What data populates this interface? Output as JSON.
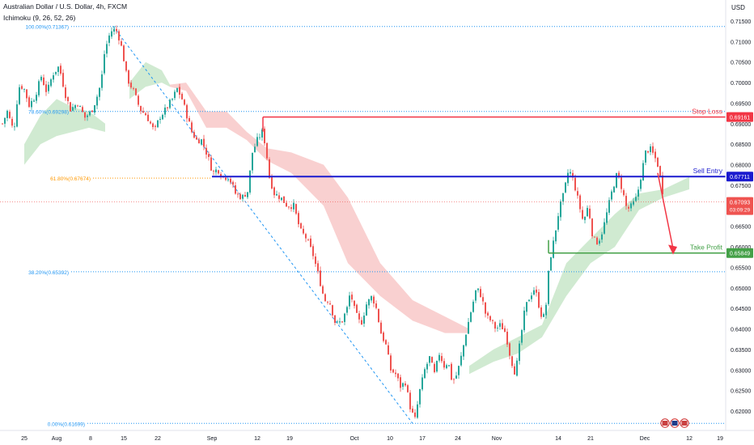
{
  "header": {
    "title": "Australian Dollar / U.S. Dollar, 4h, FXCM",
    "indicator": "Ichimoku (9, 26, 52, 26)"
  },
  "currency": "USD",
  "colors": {
    "up": "#26a69a",
    "down": "#ef5350",
    "cloud_bull": "#c8e6c9",
    "cloud_bear": "#f8c8c8",
    "stop": "#f23645",
    "entry": "#1a1acf",
    "target": "#43a047",
    "fib": "#2196f3",
    "fib_mid": "#ff9800",
    "axis_text": "#131722"
  },
  "chart_data": {
    "type": "candlestick",
    "y_range": [
      0.6165,
      0.7155
    ],
    "y_ticks": [
      "0.71500",
      "0.71000",
      "0.70500",
      "0.70000",
      "0.69500",
      "0.69000",
      "0.68500",
      "0.68000",
      "0.67500",
      "0.67000",
      "0.66500",
      "0.66000",
      "0.65500",
      "0.65000",
      "0.64500",
      "0.64000",
      "0.63500",
      "0.63000",
      "0.62500",
      "0.62000"
    ],
    "x_ticks": [
      "25",
      "Aug",
      "8",
      "15",
      "22",
      "Sep",
      "12",
      "19",
      "Oct",
      "10",
      "17",
      "24",
      "Nov",
      "14",
      "21",
      "Dec",
      "12",
      "19"
    ],
    "fib_levels": [
      {
        "label": "100.00%(0.71367)",
        "value": 0.71367
      },
      {
        "label": "78.60%(0.69298)",
        "value": 0.69298
      },
      {
        "label": "61.80%(0.67674)",
        "value": 0.67674
      },
      {
        "label": "38.20%(0.65392)",
        "value": 0.65392
      },
      {
        "label": "0.00%(0.61699)",
        "value": 0.61699
      }
    ],
    "trade_levels": [
      {
        "name": "Stop Loss",
        "value": 0.69161,
        "price_label": "0.69161"
      },
      {
        "name": "Sell Entry",
        "value": 0.67711,
        "price_label": "0.67711"
      },
      {
        "name": "Take Profit",
        "value": 0.65849,
        "price_label": "0.65849"
      }
    ],
    "current_price": {
      "value": 0.67093,
      "label": "0.67093",
      "countdown": "03:09:29"
    },
    "path": [
      [
        0,
        0.689
      ],
      [
        8,
        0.693
      ],
      [
        16,
        0.688
      ],
      [
        22,
        0.699
      ],
      [
        28,
        0.699
      ],
      [
        35,
        0.6945
      ],
      [
        42,
        0.6965
      ],
      [
        50,
        0.7015
      ],
      [
        57,
        0.6975
      ],
      [
        64,
        0.702
      ],
      [
        72,
        0.704
      ],
      [
        80,
        0.697
      ],
      [
        86,
        0.6935
      ],
      [
        95,
        0.695
      ],
      [
        104,
        0.6915
      ],
      [
        112,
        0.693
      ],
      [
        118,
        0.696
      ],
      [
        124,
        0.7
      ],
      [
        128,
        0.707
      ],
      [
        133,
        0.711
      ],
      [
        138,
        0.713
      ],
      [
        144,
        0.7125
      ],
      [
        150,
        0.708
      ],
      [
        156,
        0.701
      ],
      [
        164,
        0.698
      ],
      [
        172,
        0.6935
      ],
      [
        180,
        0.692
      ],
      [
        190,
        0.688
      ],
      [
        196,
        0.6915
      ],
      [
        204,
        0.6935
      ],
      [
        212,
        0.696
      ],
      [
        218,
        0.6985
      ],
      [
        224,
        0.696
      ],
      [
        230,
        0.692
      ],
      [
        236,
        0.688
      ],
      [
        242,
        0.686
      ],
      [
        248,
        0.686
      ],
      [
        256,
        0.682
      ],
      [
        262,
        0.678
      ],
      [
        268,
        0.679
      ],
      [
        274,
        0.677
      ],
      [
        282,
        0.677
      ],
      [
        290,
        0.673
      ],
      [
        298,
        0.672
      ],
      [
        305,
        0.6735
      ],
      [
        311,
        0.683
      ],
      [
        317,
        0.686
      ],
      [
        323,
        0.688
      ],
      [
        327,
        0.685
      ],
      [
        332,
        0.677
      ],
      [
        338,
        0.673
      ],
      [
        346,
        0.672
      ],
      [
        354,
        0.67
      ],
      [
        362,
        0.67
      ],
      [
        370,
        0.664
      ],
      [
        378,
        0.662
      ],
      [
        386,
        0.658
      ],
      [
        394,
        0.652
      ],
      [
        400,
        0.647
      ],
      [
        406,
        0.647
      ],
      [
        414,
        0.641
      ],
      [
        422,
        0.642
      ],
      [
        428,
        0.645
      ],
      [
        432,
        0.649
      ],
      [
        438,
        0.644
      ],
      [
        445,
        0.641
      ],
      [
        452,
        0.646
      ],
      [
        459,
        0.648
      ],
      [
        464,
        0.645
      ],
      [
        470,
        0.639
      ],
      [
        476,
        0.636
      ],
      [
        482,
        0.63
      ],
      [
        488,
        0.629
      ],
      [
        494,
        0.626
      ],
      [
        500,
        0.627
      ],
      [
        507,
        0.62
      ],
      [
        512,
        0.618
      ],
      [
        518,
        0.625
      ],
      [
        524,
        0.63
      ],
      [
        530,
        0.633
      ],
      [
        536,
        0.629
      ],
      [
        542,
        0.634
      ],
      [
        548,
        0.631
      ],
      [
        553,
        0.632
      ],
      [
        558,
        0.627
      ],
      [
        564,
        0.629
      ],
      [
        570,
        0.634
      ],
      [
        576,
        0.64
      ],
      [
        582,
        0.645
      ],
      [
        588,
        0.65
      ],
      [
        594,
        0.648
      ],
      [
        600,
        0.643
      ],
      [
        606,
        0.642
      ],
      [
        612,
        0.64
      ],
      [
        618,
        0.641
      ],
      [
        624,
        0.639
      ],
      [
        630,
        0.633
      ],
      [
        636,
        0.629
      ],
      [
        642,
        0.637
      ],
      [
        648,
        0.645
      ],
      [
        654,
        0.648
      ],
      [
        660,
        0.65
      ],
      [
        666,
        0.645
      ],
      [
        670,
        0.642
      ],
      [
        674,
        0.646
      ],
      [
        678,
        0.656
      ],
      [
        684,
        0.662
      ],
      [
        690,
        0.669
      ],
      [
        696,
        0.673
      ],
      [
        702,
        0.679
      ],
      [
        708,
        0.676
      ],
      [
        714,
        0.671
      ],
      [
        720,
        0.666
      ],
      [
        726,
        0.67
      ],
      [
        732,
        0.662
      ],
      [
        738,
        0.661
      ],
      [
        744,
        0.664
      ],
      [
        750,
        0.669
      ],
      [
        756,
        0.674
      ],
      [
        762,
        0.678
      ],
      [
        768,
        0.674
      ],
      [
        774,
        0.669
      ],
      [
        780,
        0.67
      ],
      [
        786,
        0.672
      ],
      [
        792,
        0.678
      ],
      [
        797,
        0.683
      ],
      [
        802,
        0.684
      ],
      [
        808,
        0.682
      ],
      [
        812,
        0.68
      ],
      [
        816,
        0.676
      ],
      [
        820,
        0.671
      ]
    ],
    "cloud_segments": [
      {
        "kind": "bull",
        "pts": [
          [
            30,
            0.68,
            0.685
          ],
          [
            50,
            0.685,
            0.692
          ],
          [
            70,
            0.687,
            0.696
          ],
          [
            90,
            0.688,
            0.694
          ],
          [
            110,
            0.689,
            0.693
          ],
          [
            130,
            0.688,
            0.69
          ]
        ]
      },
      {
        "kind": "bull",
        "pts": [
          [
            160,
            0.696,
            0.7
          ],
          [
            180,
            0.699,
            0.705
          ],
          [
            200,
            0.7,
            0.703
          ],
          [
            210,
            0.699,
            0.6995
          ]
        ]
      },
      {
        "kind": "bear",
        "pts": [
          [
            210,
            0.699,
            0.6995
          ],
          [
            230,
            0.698,
            0.7
          ],
          [
            255,
            0.689,
            0.693
          ],
          [
            280,
            0.689,
            0.693
          ],
          [
            305,
            0.686,
            0.688
          ],
          [
            330,
            0.681,
            0.684
          ],
          [
            360,
            0.678,
            0.683
          ],
          [
            400,
            0.67,
            0.68
          ],
          [
            430,
            0.656,
            0.672
          ],
          [
            470,
            0.648,
            0.656
          ],
          [
            510,
            0.642,
            0.647
          ],
          [
            550,
            0.639,
            0.643
          ],
          [
            580,
            0.639,
            0.64
          ]
        ]
      },
      {
        "kind": "bull",
        "pts": [
          [
            580,
            0.629,
            0.631
          ],
          [
            610,
            0.632,
            0.635
          ],
          [
            640,
            0.634,
            0.638
          ],
          [
            670,
            0.638,
            0.641
          ],
          [
            700,
            0.648,
            0.656
          ],
          [
            730,
            0.656,
            0.662
          ],
          [
            760,
            0.66,
            0.668
          ],
          [
            790,
            0.669,
            0.673
          ],
          [
            820,
            0.672,
            0.674
          ],
          [
            852,
            0.674,
            0.677
          ]
        ]
      }
    ]
  },
  "x_tick_positions": [
    30,
    70,
    112,
    153,
    195,
    262,
    318,
    358,
    438,
    482,
    522,
    566,
    614,
    690,
    730,
    797,
    852,
    890
  ]
}
